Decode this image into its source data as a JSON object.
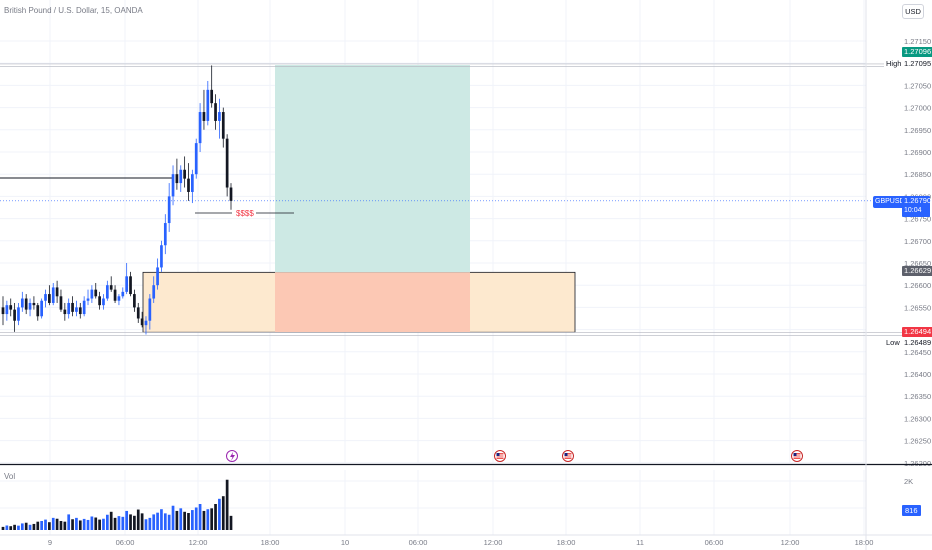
{
  "header": {
    "symbol_title": "British Pound / U.S. Dollar, 15, OANDA",
    "currency": "USD"
  },
  "price_axis": {
    "ticks": [
      "1.27150",
      "1.27100",
      "1.27050",
      "1.27000",
      "1.26950",
      "1.26900",
      "1.26850",
      "1.26800",
      "1.26750",
      "1.26700",
      "1.26650",
      "1.26600",
      "1.26550",
      "1.26500",
      "1.26450",
      "1.26400",
      "1.26350",
      "1.26300",
      "1.26250",
      "1.26200"
    ],
    "high_label": "High",
    "high_value": "1.27095",
    "target_value": "1.27096",
    "symbol": "GBPUSD",
    "current_price": "1.26790",
    "countdown": "10:04",
    "entry_value": "1.26629",
    "stop_value": "1.26494",
    "low_label": "Low",
    "low_value": "1.26489"
  },
  "time_axis": {
    "labels": [
      "9",
      "06:00",
      "12:00",
      "18:00",
      "10",
      "06:00",
      "12:00",
      "18:00",
      "11",
      "06:00",
      "12:00",
      "18:00"
    ]
  },
  "annotations": {
    "liquidity_text": "$$$$"
  },
  "volume": {
    "label": "Vol",
    "ticks": [
      "2K",
      "1K"
    ],
    "last_value": "816"
  },
  "colors": {
    "up_candle": "#2962ff",
    "down_candle": "#131722",
    "target_zone": "#cde9e4",
    "stop_zone": "#fcc8b4",
    "demand_zone": "#fde9cf",
    "target_tag": "#089981",
    "stop_tag": "#f23645",
    "entry_tag": "#5d606b",
    "current_tag": "#2962ff"
  },
  "chart_data": {
    "type": "candlestick",
    "title": "British Pound / U.S. Dollar, 15, OANDA",
    "ylim": [
      1.2618,
      1.2719
    ],
    "ohlc": [
      [
        1.2655,
        1.26575,
        1.2651,
        1.26535
      ],
      [
        1.26535,
        1.26565,
        1.2652,
        1.26555
      ],
      [
        1.26555,
        1.2657,
        1.2653,
        1.26545
      ],
      [
        1.26545,
        1.2656,
        1.26495,
        1.2652
      ],
      [
        1.2652,
        1.2656,
        1.2651,
        1.2655
      ],
      [
        1.2655,
        1.26585,
        1.2654,
        1.2657
      ],
      [
        1.2657,
        1.2658,
        1.26535,
        1.26545
      ],
      [
        1.26545,
        1.2657,
        1.2653,
        1.2656
      ],
      [
        1.2656,
        1.26575,
        1.26545,
        1.26555
      ],
      [
        1.26555,
        1.2656,
        1.2652,
        1.2653
      ],
      [
        1.2653,
        1.2657,
        1.26525,
        1.26565
      ],
      [
        1.26565,
        1.2659,
        1.2655,
        1.2658
      ],
      [
        1.2658,
        1.266,
        1.26555,
        1.2656
      ],
      [
        1.2656,
        1.26605,
        1.26555,
        1.26595
      ],
      [
        1.26595,
        1.2661,
        1.2656,
        1.26575
      ],
      [
        1.26575,
        1.2659,
        1.2654,
        1.26545
      ],
      [
        1.26545,
        1.2656,
        1.2652,
        1.26535
      ],
      [
        1.26535,
        1.2657,
        1.26525,
        1.2656
      ],
      [
        1.2656,
        1.26575,
        1.2653,
        1.2654
      ],
      [
        1.2654,
        1.26565,
        1.2653,
        1.2655
      ],
      [
        1.2655,
        1.2656,
        1.26525,
        1.26535
      ],
      [
        1.26535,
        1.26575,
        1.2653,
        1.26565
      ],
      [
        1.26565,
        1.2659,
        1.26555,
        1.2657
      ],
      [
        1.2657,
        1.266,
        1.2656,
        1.2659
      ],
      [
        1.2659,
        1.26605,
        1.2657,
        1.26575
      ],
      [
        1.26575,
        1.26585,
        1.26545,
        1.26555
      ],
      [
        1.26555,
        1.2658,
        1.26545,
        1.2657
      ],
      [
        1.2657,
        1.2661,
        1.26565,
        1.266
      ],
      [
        1.266,
        1.2662,
        1.26585,
        1.2659
      ],
      [
        1.2659,
        1.266,
        1.2656,
        1.26565
      ],
      [
        1.26565,
        1.2658,
        1.26555,
        1.26575
      ],
      [
        1.26575,
        1.26595,
        1.2657,
        1.26585
      ],
      [
        1.26585,
        1.2665,
        1.2658,
        1.2662
      ],
      [
        1.2662,
        1.2663,
        1.26575,
        1.2658
      ],
      [
        1.2658,
        1.2659,
        1.2654,
        1.2655
      ],
      [
        1.2655,
        1.2656,
        1.26515,
        1.26525
      ],
      [
        1.26525,
        1.2654,
        1.26505,
        1.2651
      ],
      [
        1.2651,
        1.2653,
        1.26489,
        1.2652
      ],
      [
        1.2652,
        1.2658,
        1.265,
        1.2657
      ],
      [
        1.2657,
        1.2662,
        1.2656,
        1.266
      ],
      [
        1.266,
        1.2666,
        1.2659,
        1.2664
      ],
      [
        1.2664,
        1.267,
        1.2663,
        1.2669
      ],
      [
        1.2669,
        1.2676,
        1.2667,
        1.2674
      ],
      [
        1.2674,
        1.2683,
        1.2672,
        1.268
      ],
      [
        1.268,
        1.2687,
        1.2678,
        1.2685
      ],
      [
        1.2685,
        1.26885,
        1.26815,
        1.2683
      ],
      [
        1.2683,
        1.2687,
        1.2681,
        1.2686
      ],
      [
        1.2686,
        1.2689,
        1.2682,
        1.2684
      ],
      [
        1.2684,
        1.26875,
        1.2679,
        1.2681
      ],
      [
        1.2681,
        1.2686,
        1.26785,
        1.2685
      ],
      [
        1.2685,
        1.2693,
        1.2684,
        1.2692
      ],
      [
        1.2692,
        1.2701,
        1.269,
        1.2699
      ],
      [
        1.2699,
        1.2704,
        1.2695,
        1.2697
      ],
      [
        1.2697,
        1.2706,
        1.2696,
        1.2704
      ],
      [
        1.2704,
        1.27095,
        1.27,
        1.2701
      ],
      [
        1.2701,
        1.2703,
        1.2695,
        1.2697
      ],
      [
        1.2697,
        1.2702,
        1.2693,
        1.2699
      ],
      [
        1.2699,
        1.27,
        1.2691,
        1.2693
      ],
      [
        1.2693,
        1.2694,
        1.268,
        1.2682
      ],
      [
        1.2682,
        1.2683,
        1.2677,
        1.2679
      ]
    ],
    "volume": [
      180,
      260,
      220,
      300,
      250,
      380,
      420,
      300,
      350,
      480,
      520,
      600,
      450,
      700,
      650,
      520,
      480,
      900,
      620,
      700,
      550,
      640,
      580,
      780,
      720,
      600,
      650,
      880,
      1050,
      700,
      800,
      760,
      1100,
      900,
      820,
      1180,
      960,
      620,
      700,
      900,
      1000,
      1200,
      960,
      880,
      1400,
      1100,
      1250,
      1050,
      980,
      1150,
      1300,
      1500,
      1100,
      1200,
      1250,
      1500,
      1800,
      1950,
      2900,
      816
    ],
    "volume_ylim": [
      0,
      3000
    ],
    "annotations": {
      "target": 1.27096,
      "entry": 1.26629,
      "stop": 1.26494,
      "high": 1.27095,
      "low": 1.26489,
      "current": 1.2679,
      "liquidity_label": "$$$$"
    }
  }
}
